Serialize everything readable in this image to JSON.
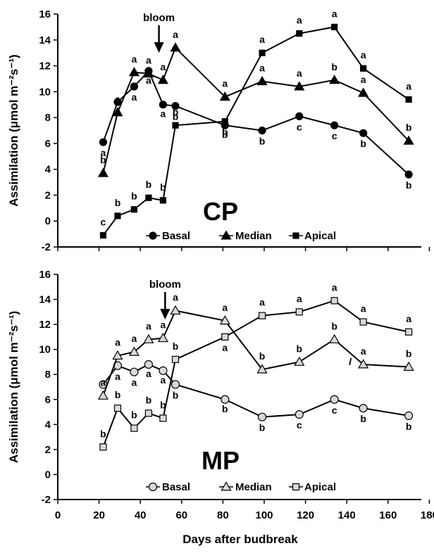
{
  "figure": {
    "xlabel": "Days after budbreak",
    "ylabel": "Assimilation (μmol m⁻²s⁻¹)",
    "xticks": [
      0,
      20,
      40,
      60,
      80,
      100,
      120,
      140,
      160,
      180
    ],
    "yticks": [
      -2,
      0,
      2,
      4,
      6,
      8,
      10,
      12,
      14,
      16
    ],
    "legend": [
      "Basal",
      "Median",
      "Apical"
    ],
    "bloom_label": "bloom",
    "stray_mark": "l"
  },
  "chart_data": [
    {
      "type": "line",
      "title": "CP",
      "xlabel": "",
      "ylabel": "Assimilation (μmol m⁻²s⁻¹)",
      "xlim": [
        0,
        180
      ],
      "ylim": [
        -2,
        16
      ],
      "annotation": {
        "text": "bloom",
        "x": 49
      },
      "legend_position": "bottom-center",
      "series": [
        {
          "name": "Basal",
          "marker": "circle",
          "x": [
            22,
            29,
            37,
            44,
            51,
            57,
            81,
            99,
            117,
            134,
            148,
            170
          ],
          "y": [
            6.1,
            9.2,
            10.4,
            11.6,
            9.0,
            8.9,
            7.4,
            7.0,
            8.1,
            7.4,
            6.8,
            3.6
          ],
          "labels": [
            "a",
            "a",
            "a",
            "a",
            "a",
            "b",
            "b",
            "b",
            "c",
            "c",
            "b",
            "b"
          ]
        },
        {
          "name": "Median",
          "marker": "triangle",
          "x": [
            22,
            29,
            37,
            44,
            51,
            57,
            81,
            99,
            117,
            134,
            148,
            170
          ],
          "y": [
            3.7,
            8.4,
            11.5,
            11.4,
            10.9,
            13.4,
            9.6,
            10.8,
            10.4,
            10.9,
            9.9,
            6.2
          ],
          "labels": [
            "b",
            "a",
            "a",
            "a",
            "a",
            "a",
            "a",
            "a",
            "a",
            "b",
            "a",
            "b"
          ]
        },
        {
          "name": "Apical",
          "marker": "square",
          "x": [
            22,
            29,
            37,
            44,
            51,
            57,
            81,
            99,
            117,
            134,
            148,
            170
          ],
          "y": [
            -1.1,
            0.4,
            0.9,
            1.8,
            1.6,
            7.4,
            7.7,
            13.0,
            14.5,
            15.0,
            11.8,
            9.4
          ],
          "labels": [
            "c",
            "b",
            "b",
            "b",
            "b",
            "b",
            "b",
            "a",
            "a",
            "a",
            "a",
            "a"
          ]
        }
      ]
    },
    {
      "type": "line",
      "title": "MP",
      "xlabel": "Days after budbreak",
      "ylabel": "Assimilation (μmol m⁻²s⁻¹)",
      "xlim": [
        0,
        180
      ],
      "ylim": [
        -2,
        16
      ],
      "annotation": {
        "text": "bloom",
        "x": 52
      },
      "legend_position": "bottom-center",
      "series": [
        {
          "name": "Basal",
          "marker": "circle-open",
          "x": [
            22,
            29,
            37,
            44,
            51,
            57,
            81,
            99,
            117,
            134,
            148,
            170
          ],
          "y": [
            7.2,
            8.7,
            8.2,
            8.8,
            8.3,
            7.2,
            6.0,
            4.6,
            4.8,
            6.0,
            5.3,
            4.7
          ],
          "labels": [
            "a",
            "a",
            "a",
            "a",
            "a",
            "b",
            "b",
            "b",
            "c",
            "c",
            "b",
            "b"
          ]
        },
        {
          "name": "Median",
          "marker": "triangle-open",
          "x": [
            22,
            29,
            37,
            44,
            51,
            57,
            81,
            99,
            117,
            134,
            148,
            170
          ],
          "y": [
            6.3,
            9.5,
            9.8,
            10.8,
            10.9,
            13.1,
            12.3,
            8.4,
            9.0,
            10.8,
            8.8,
            8.6
          ],
          "labels": [
            "a",
            "a",
            "a",
            "a",
            "a",
            "a",
            "a",
            "b",
            "b",
            "b",
            "a",
            "b"
          ]
        },
        {
          "name": "Apical",
          "marker": "square-open",
          "x": [
            22,
            29,
            37,
            44,
            51,
            57,
            81,
            99,
            117,
            134,
            148,
            170
          ],
          "y": [
            2.2,
            5.3,
            3.7,
            4.9,
            4.5,
            9.2,
            11.0,
            12.7,
            13.0,
            13.9,
            12.2,
            11.4
          ],
          "labels": [
            "b",
            "b",
            "b",
            "b",
            "b",
            "b",
            "a",
            "a",
            "a",
            "a",
            "a",
            "a"
          ]
        }
      ]
    }
  ]
}
